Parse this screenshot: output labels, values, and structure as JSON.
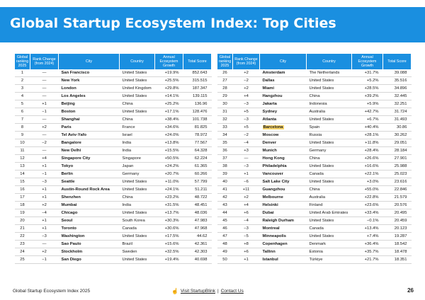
{
  "title": "Global Startup Ecosystem Index: Top Cities",
  "headers": {
    "rank": "Global ranking 2025",
    "change": "Rank Change (from 2024)",
    "city": "City",
    "country": "Country",
    "growth": "Annual Ecosystem Growth",
    "score": "Total Score"
  },
  "highlight_color": "#f7d56b",
  "header_color": "#1a8fe0",
  "left_rows": [
    [
      "1",
      "—",
      "San Francisco",
      "United States",
      "+19.9%",
      "852.643"
    ],
    [
      "2",
      "—",
      "New York",
      "United States",
      "+25.5%",
      "315.515"
    ],
    [
      "3",
      "—",
      "London",
      "United Kingdom",
      "+29.8%",
      "187.347"
    ],
    [
      "4",
      "—",
      "Los Angeles",
      "United States",
      "+14.1%",
      "139.115"
    ],
    [
      "5",
      "+1",
      "Beijing",
      "China",
      "+25.2%",
      "136.96"
    ],
    [
      "6",
      "−1",
      "Boston",
      "United States",
      "+17.1%",
      "128.476"
    ],
    [
      "7",
      "—",
      "Shanghai",
      "China",
      "+38.4%",
      "101.738"
    ],
    [
      "8",
      "+2",
      "Paris",
      "France",
      "+34.6%",
      "81.825"
    ],
    [
      "9",
      "—",
      "Tel Aviv-Yafo",
      "Israel",
      "+24.0%",
      "78.972"
    ],
    [
      "10",
      "−2",
      "Bangalore",
      "India",
      "+13.8%",
      "77.567"
    ],
    [
      "11",
      "—",
      "New Delhi",
      "India",
      "+15.5%",
      "64.328"
    ],
    [
      "12",
      "+4",
      "Singapore City",
      "Singapore",
      "+50.5%",
      "62.224"
    ],
    [
      "13",
      "+1",
      "Tokyo",
      "Japan",
      "+24.2%",
      "61.365"
    ],
    [
      "14",
      "−1",
      "Berlin",
      "Germany",
      "+20.7%",
      "60.266"
    ],
    [
      "15",
      "−3",
      "Seattle",
      "United States",
      "+11.0%",
      "57.799"
    ],
    [
      "16",
      "+1",
      "Austin-Round Rock Area",
      "United States",
      "+24.1%",
      "51.211"
    ],
    [
      "17",
      "+1",
      "Shenzhen",
      "China",
      "+23.2%",
      "48.722"
    ],
    [
      "18",
      "+2",
      "Mumbai",
      "India",
      "+31.5%",
      "48.451"
    ],
    [
      "19",
      "−4",
      "Chicago",
      "United States",
      "+13.7%",
      "48.036"
    ],
    [
      "20",
      "+1",
      "Seoul",
      "South Korea",
      "+30.3%",
      "47.983"
    ],
    [
      "21",
      "+1",
      "Toronto",
      "Canada",
      "+30.6%",
      "47.968"
    ],
    [
      "22",
      "−3",
      "Washington",
      "United States",
      "+17.5%",
      "44.62"
    ],
    [
      "23",
      "—",
      "Sao Paulo",
      "Brazil",
      "+15.6%",
      "42.361"
    ],
    [
      "24",
      "+2",
      "Stockholm",
      "Sweden",
      "+32.5%",
      "42.303"
    ],
    [
      "25",
      "−1",
      "San Diego",
      "United States",
      "+19.4%",
      "40.698"
    ]
  ],
  "right_rows": [
    [
      "26",
      "+2",
      "Amsterdam",
      "The Netherlands",
      "+31.7%",
      "39.088"
    ],
    [
      "27",
      "−2",
      "Dallas",
      "United States",
      "+5.2%",
      "35.516"
    ],
    [
      "28",
      "+2",
      "Miami",
      "United States",
      "+28.5%",
      "34.896"
    ],
    [
      "29",
      "+4",
      "Hangzhou",
      "China",
      "+39.2%",
      "32.445"
    ],
    [
      "30",
      "−3",
      "Jakarta",
      "Indonesia",
      "+5.9%",
      "32.251"
    ],
    [
      "31",
      "+5",
      "Sydney",
      "Australia",
      "+42.7%",
      "31.724"
    ],
    [
      "32",
      "−3",
      "Atlanta",
      "United States",
      "+6.7%",
      "31.493"
    ],
    [
      "33",
      "+5",
      "Barcelona",
      "Spain",
      "+40.4%",
      "30.86"
    ],
    [
      "34",
      "−2",
      "Moscow",
      "Russia",
      "+28.1%",
      "30.262"
    ],
    [
      "35",
      "−4",
      "Denver",
      "United States",
      "+11.8%",
      "29.051"
    ],
    [
      "36",
      "+3",
      "Munich",
      "Germany",
      "+28.4%",
      "28.184"
    ],
    [
      "37",
      "—",
      "Hong Kong",
      "China",
      "+26.6%",
      "27.901"
    ],
    [
      "38",
      "−3",
      "Philadelphia",
      "United States",
      "+16.6%",
      "25.988"
    ],
    [
      "39",
      "+1",
      "Vancouver",
      "Canada",
      "+22.1%",
      "25.023"
    ],
    [
      "40",
      "−6",
      "Salt Lake City",
      "United States",
      "+3.0%",
      "23.616"
    ],
    [
      "41",
      "+11",
      "Guangzhou",
      "China",
      "+55.0%",
      "22.846"
    ],
    [
      "42",
      "+2",
      "Melbourne",
      "Australia",
      "+22.8%",
      "21.579"
    ],
    [
      "43",
      "+4",
      "Helsinki",
      "Finland",
      "+23.6%",
      "20.576"
    ],
    [
      "44",
      "+6",
      "Dubai",
      "United Arab Emirates",
      "+33.4%",
      "20.495"
    ],
    [
      "45",
      "−4",
      "Raleigh Durham",
      "United States",
      "−0.1%",
      "20.459"
    ],
    [
      "46",
      "−3",
      "Montreal",
      "Canada",
      "+13.4%",
      "20.123"
    ],
    [
      "47",
      "−5",
      "Minneapolis",
      "United States",
      "+7.4%",
      "19.287"
    ],
    [
      "48",
      "+8",
      "Copenhagen",
      "Denmark",
      "+36.4%",
      "18.542"
    ],
    [
      "49",
      "+6",
      "Tallinn",
      "Estonia",
      "+35.7%",
      "18.478"
    ],
    [
      "50",
      "+1",
      "Istanbul",
      "Türkiye",
      "+21.7%",
      "18.351"
    ]
  ],
  "highlighted_rank": "33",
  "footer": {
    "left": "Global Startup Ecosystem Index 2025",
    "visit": "Visit StartupBlink",
    "separator": "|",
    "contact": "Contact Us",
    "page": "26"
  }
}
